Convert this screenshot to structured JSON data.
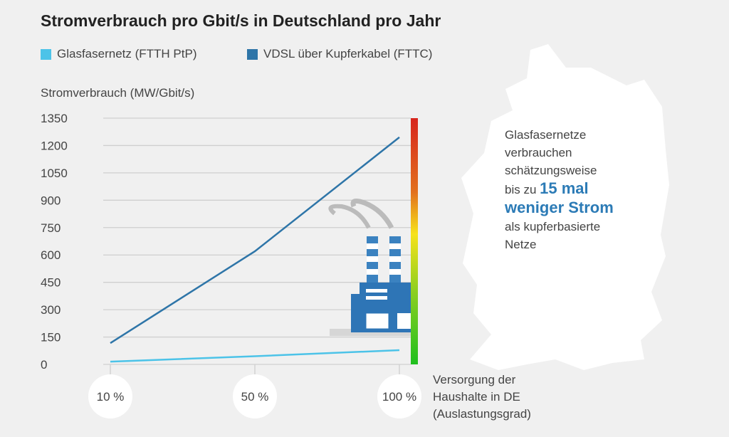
{
  "title": "Stromverbrauch pro Gbit/s in Deutschland pro Jahr",
  "colors": {
    "glas": "#4cc3e8",
    "vdsl": "#2e75a8",
    "grid": "#cfcfcf"
  },
  "chart_data": {
    "type": "line",
    "title": "Stromverbrauch pro Gbit/s in Deutschland pro Jahr",
    "ylabel": "Stromverbrauch (MW/Gbit/s)",
    "xlabel": "Versorgung der Haushalte in DE (Auslastungsgrad)",
    "xlabel_lines": [
      "Versorgung der",
      "Haushalte in DE",
      "(Auslastungsgrad)"
    ],
    "categories": [
      "10 %",
      "50 %",
      "100 %"
    ],
    "yticks": [
      "0",
      "150",
      "300",
      "450",
      "600",
      "750",
      "900",
      "1050",
      "1200",
      "1350"
    ],
    "ylim": [
      0,
      1350
    ],
    "grid": true,
    "legend_position": "top-left",
    "series": [
      {
        "name": "Glasfasernetz (FTTH PtP)",
        "values": [
          15,
          45,
          78
        ]
      },
      {
        "name": "VDSL über Kupferkabel (FTTC)",
        "values": [
          117,
          620,
          1245
        ]
      }
    ]
  },
  "annotation": {
    "line1": "Glasfasernetze",
    "line2": "verbrauchen",
    "line3": "schätzungsweise",
    "line4_prefix": "bis zu ",
    "highlight1": "15 mal",
    "highlight2": "weniger Strom",
    "line6": "als kupferbasierte",
    "line7": "Netze"
  }
}
